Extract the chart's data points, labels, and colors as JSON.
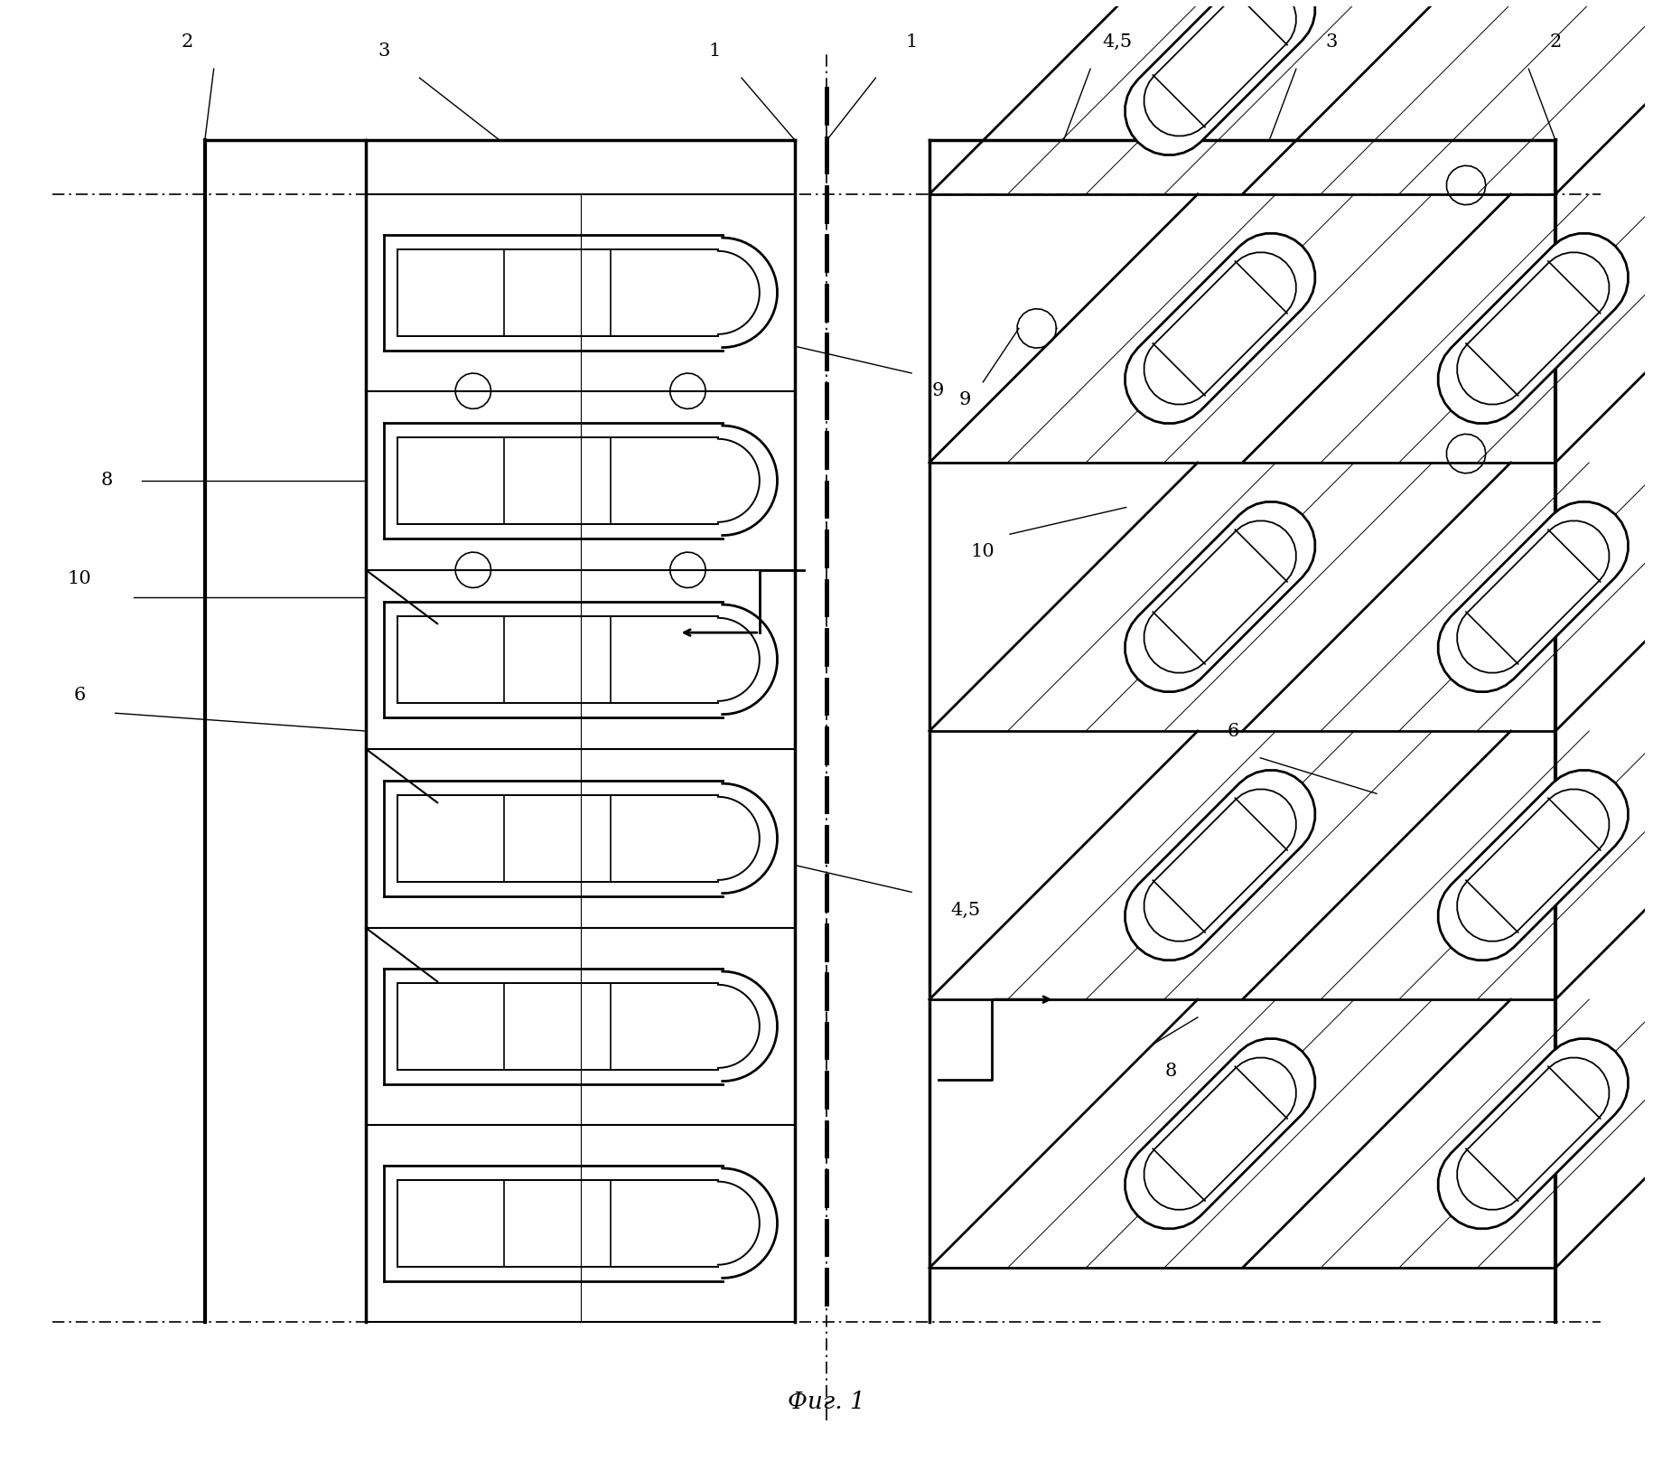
{
  "title": "Фиг. 1",
  "background": "#ffffff",
  "line_color": "#000000",
  "fig_width": 18.3,
  "fig_height": 16.28,
  "dpi": 100
}
